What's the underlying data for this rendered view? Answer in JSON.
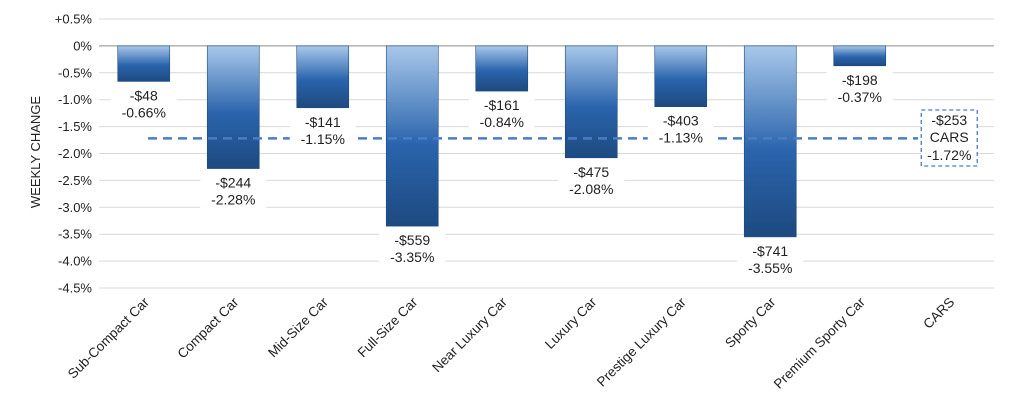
{
  "chart_data": {
    "type": "bar",
    "ylabel": "WEEKLY CHANGE",
    "ylim": [
      -4.5,
      0.5
    ],
    "y_ticks": [
      {
        "value": 0.5,
        "label": "+0.5%"
      },
      {
        "value": 0.0,
        "label": "0%"
      },
      {
        "value": -0.5,
        "label": "-0.5%"
      },
      {
        "value": -1.0,
        "label": "-1.0%"
      },
      {
        "value": -1.5,
        "label": "-1.5%"
      },
      {
        "value": -2.0,
        "label": "-2.0%"
      },
      {
        "value": -2.5,
        "label": "-2.5%"
      },
      {
        "value": -3.0,
        "label": "-3.0%"
      },
      {
        "value": -3.5,
        "label": "-3.5%"
      },
      {
        "value": -4.0,
        "label": "-4.0%"
      },
      {
        "value": -4.5,
        "label": "-4.5%"
      }
    ],
    "grid": true,
    "categories": [
      "Sub-Compact Car",
      "Compact Car",
      "Mid-Size Car",
      "Full-Size Car",
      "Near Luxury Car",
      "Luxury Car",
      "Prestige Luxury Car",
      "Sporty Car",
      "Premium Sporty Car",
      "CARS"
    ],
    "values": [
      -0.66,
      -2.28,
      -1.15,
      -3.35,
      -0.84,
      -2.08,
      -1.13,
      -3.55,
      -0.37,
      null
    ],
    "dollar_labels": [
      "-$48",
      "-$244",
      "-$141",
      "-$559",
      "-$161",
      "-$475",
      "-$403",
      "-$741",
      "-$198"
    ],
    "percent_labels": [
      "-0.66%",
      "-2.28%",
      "-1.15%",
      "-3.35%",
      "-0.84%",
      "-2.08%",
      "-1.13%",
      "-3.55%",
      "-0.37%"
    ],
    "reference_line": {
      "value": -1.72,
      "dollar_label": "-$253",
      "name_label": "CARS",
      "percent_label": "-1.72%",
      "color": "#4a7cc9",
      "style": "dashed"
    },
    "bar_gradient": [
      "#a8c8ea",
      "#2a64ac",
      "#1d4a80"
    ]
  }
}
